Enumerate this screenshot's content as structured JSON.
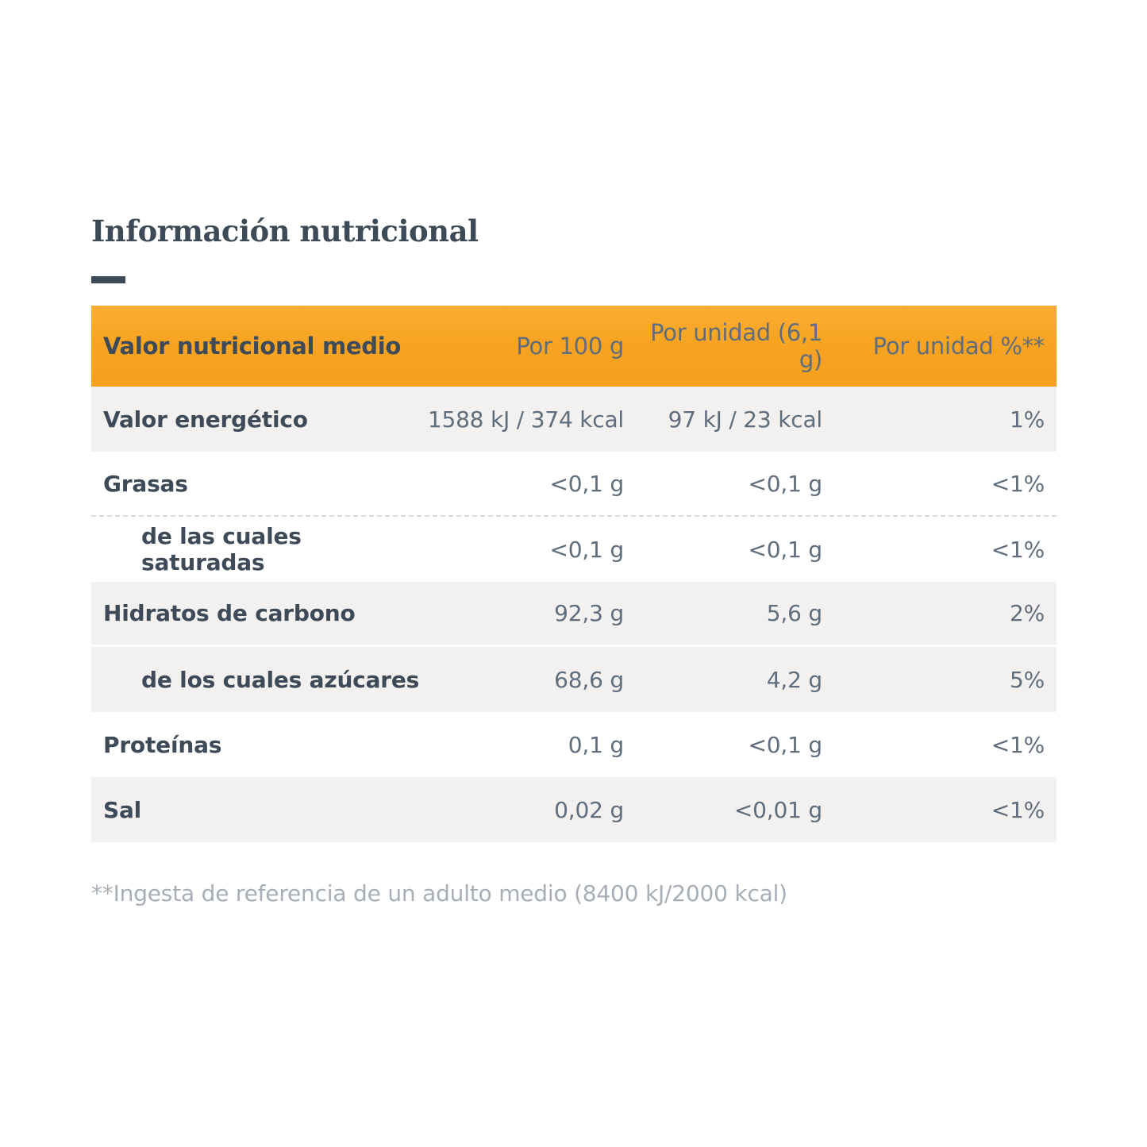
{
  "section": {
    "title": "Información nutricional",
    "footnote": "**Ingesta de referencia de un adulto medio (8400 kJ/2000 kcal)"
  },
  "colors": {
    "header_orange_top": "#FBAD33",
    "header_orange_bottom": "#F6A01D",
    "header_text": "#FFFFFF",
    "label_text": "#3E4A58",
    "value_text": "#5F6D7C",
    "row_gray": "#F2F1EF",
    "row_white": "#FFFFFF",
    "title_text": "#3D4A57",
    "footnote_text": "#A7AEB5",
    "dashed_divider": "#D9D9D9"
  },
  "table": {
    "columns": [
      "Valor nutricional medio",
      "Por 100 g",
      "Por unidad (6,1 g)",
      "Por unidad %**"
    ],
    "rows": [
      {
        "label": "Valor energético",
        "per_100g": "1588 kJ / 374 kcal",
        "per_unit": "97 kJ / 23 kcal",
        "percent": "1%"
      },
      {
        "label": "Grasas",
        "per_100g": "<0,1 g",
        "per_unit": "<0,1 g",
        "percent": "<1%"
      },
      {
        "label": "de las cuales saturadas",
        "per_100g": "<0,1 g",
        "per_unit": "<0,1 g",
        "percent": "<1%"
      },
      {
        "label": "Hidratos de carbono",
        "per_100g": "92,3 g",
        "per_unit": "5,6 g",
        "percent": "2%"
      },
      {
        "label": "de los cuales azúcares",
        "per_100g": "68,6 g",
        "per_unit": "4,2 g",
        "percent": "5%"
      },
      {
        "label": "Proteínas",
        "per_100g": "0,1 g",
        "per_unit": "<0,1 g",
        "percent": "<1%"
      },
      {
        "label": "Sal",
        "per_100g": "0,02 g",
        "per_unit": "<0,01 g",
        "percent": "<1%"
      }
    ]
  }
}
